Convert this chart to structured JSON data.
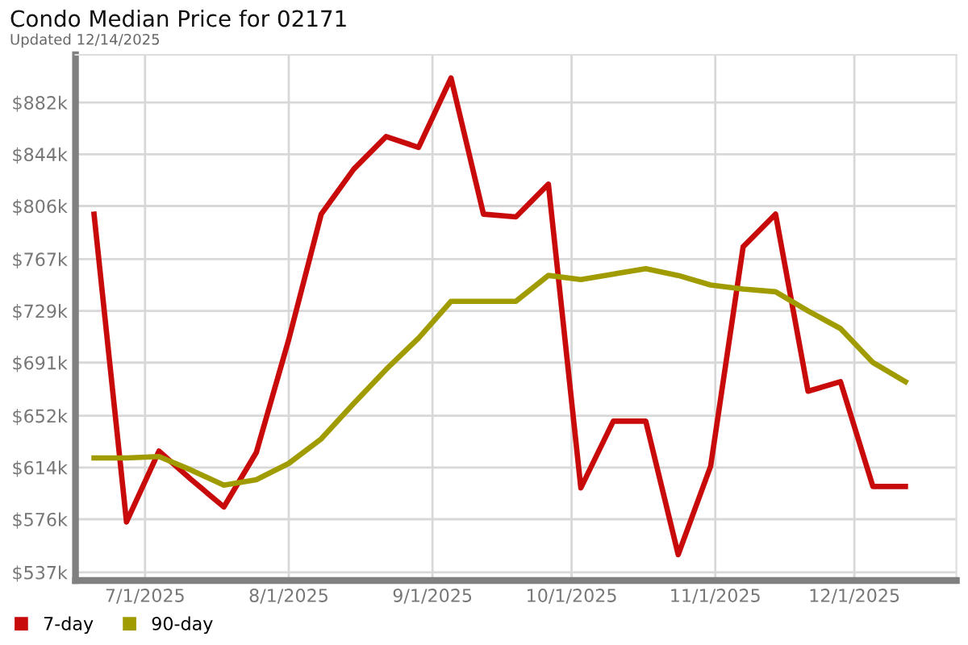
{
  "chart_data": {
    "type": "line",
    "title": "Condo Median Price for 02171",
    "subtitle": "Updated 12/14/2025",
    "x": [
      "2025-06-20",
      "2025-06-27",
      "2025-07-04",
      "2025-07-11",
      "2025-07-18",
      "2025-07-25",
      "2025-08-01",
      "2025-08-08",
      "2025-08-15",
      "2025-08-22",
      "2025-08-29",
      "2025-09-05",
      "2025-09-12",
      "2025-09-19",
      "2025-09-26",
      "2025-10-03",
      "2025-10-10",
      "2025-10-17",
      "2025-10-24",
      "2025-10-31",
      "2025-11-07",
      "2025-11-14",
      "2025-11-21",
      "2025-11-28",
      "2025-12-05",
      "2025-12-12"
    ],
    "series": [
      {
        "name": "7-day",
        "color": "#c80a0a",
        "values": [
          800,
          574,
          626,
          605,
          585,
          625,
          708,
          800,
          833,
          857,
          849,
          900,
          800,
          798,
          822,
          599,
          648,
          648,
          550,
          615,
          776,
          800,
          670,
          677,
          600,
          600
        ]
      },
      {
        "name": "90-day",
        "color": "#a09c00",
        "values": [
          621,
          621,
          622,
          612,
          601,
          605,
          617,
          635,
          661,
          686,
          709,
          736,
          736,
          736,
          755,
          752,
          756,
          760,
          755,
          748,
          745,
          743,
          729,
          716,
          691,
          677
        ]
      }
    ],
    "xlim": [
      "2025-06-16",
      "2025-12-23"
    ],
    "xticks": [
      {
        "value": "2025-07-01",
        "label": "7/1/2025"
      },
      {
        "value": "2025-08-01",
        "label": "8/1/2025"
      },
      {
        "value": "2025-09-01",
        "label": "9/1/2025"
      },
      {
        "value": "2025-10-01",
        "label": "10/1/2025"
      },
      {
        "value": "2025-11-01",
        "label": "11/1/2025"
      },
      {
        "value": "2025-12-01",
        "label": "12/1/2025"
      }
    ],
    "ylim": [
      531,
      917
    ],
    "yticks": [
      {
        "value": 537,
        "label": "$537k"
      },
      {
        "value": 576,
        "label": "$576k"
      },
      {
        "value": 614,
        "label": "$614k"
      },
      {
        "value": 652,
        "label": "$652k"
      },
      {
        "value": 691,
        "label": "$691k"
      },
      {
        "value": 729,
        "label": "$729k"
      },
      {
        "value": 767,
        "label": "$767k"
      },
      {
        "value": 806,
        "label": "$806k"
      },
      {
        "value": 844,
        "label": "$844k"
      },
      {
        "value": 882,
        "label": "$882k"
      }
    ],
    "grid": true,
    "legend": "bottom left",
    "marker": "none",
    "line_style": "solid"
  }
}
